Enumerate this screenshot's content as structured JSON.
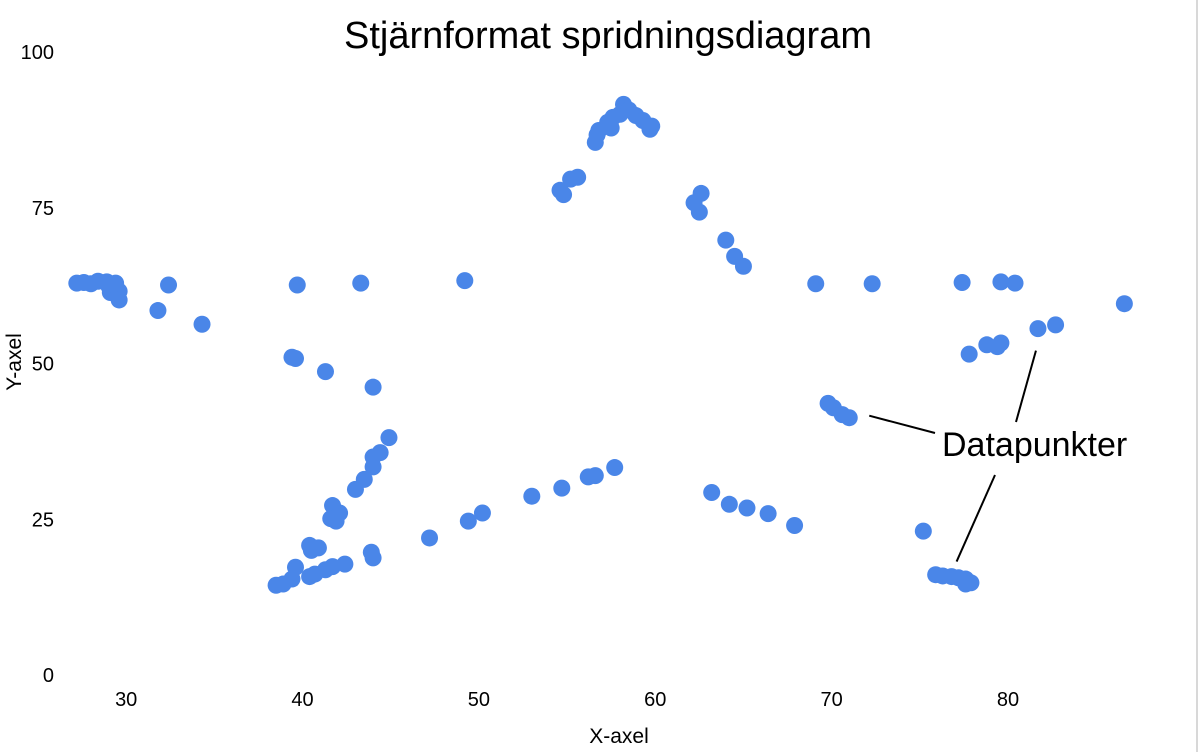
{
  "chart_data": {
    "type": "scatter",
    "title": "Stjärnformat spridningsdiagram",
    "xlabel": "X-axel",
    "ylabel": "Y-axel",
    "xlim": [
      26.7,
      87.6
    ],
    "ylim": [
      0,
      100
    ],
    "xticks": [
      "30",
      "40",
      "50",
      "60",
      "70",
      "80"
    ],
    "yticks": [
      "0",
      "25",
      "50",
      "75",
      "100"
    ],
    "grid": false,
    "legend": "none",
    "point_color": "#4a86e8",
    "annotation": {
      "text": "Datapunkter",
      "targets": [
        [
          71.0,
          41.3
        ],
        [
          81.7,
          55.6
        ],
        [
          77.2,
          15.0
        ]
      ]
    },
    "series": [
      {
        "points": [
          [
            27.2,
            62.9
          ],
          [
            27.6,
            63.0
          ],
          [
            28.0,
            62.8
          ],
          [
            28.4,
            63.2
          ],
          [
            28.9,
            63.1
          ],
          [
            29.0,
            62.5
          ],
          [
            29.1,
            61.4
          ],
          [
            29.3,
            62.6
          ],
          [
            29.6,
            61.6
          ],
          [
            29.6,
            60.2
          ],
          [
            29.4,
            62.9
          ],
          [
            31.8,
            58.5
          ],
          [
            32.4,
            62.6
          ],
          [
            34.3,
            56.3
          ],
          [
            39.4,
            51.0
          ],
          [
            39.6,
            50.8
          ],
          [
            39.7,
            62.6
          ],
          [
            41.3,
            48.7
          ],
          [
            43.3,
            62.9
          ],
          [
            44.0,
            46.2
          ],
          [
            49.2,
            63.3
          ],
          [
            54.6,
            77.8
          ],
          [
            54.8,
            77.1
          ],
          [
            55.2,
            79.6
          ],
          [
            55.6,
            79.9
          ],
          [
            56.6,
            85.5
          ],
          [
            56.7,
            86.7
          ],
          [
            56.8,
            87.4
          ],
          [
            57.3,
            88.7
          ],
          [
            57.5,
            87.8
          ],
          [
            57.6,
            89.5
          ],
          [
            58.0,
            90.0
          ],
          [
            58.2,
            91.6
          ],
          [
            58.5,
            90.7
          ],
          [
            58.9,
            89.8
          ],
          [
            59.3,
            89.0
          ],
          [
            59.7,
            87.6
          ],
          [
            59.8,
            88.1
          ],
          [
            62.2,
            75.8
          ],
          [
            62.5,
            74.3
          ],
          [
            62.6,
            77.3
          ],
          [
            64.0,
            69.8
          ],
          [
            64.5,
            67.2
          ],
          [
            65.0,
            65.6
          ],
          [
            69.1,
            62.8
          ],
          [
            72.3,
            62.8
          ],
          [
            77.4,
            63.0
          ],
          [
            79.6,
            63.1
          ],
          [
            80.4,
            62.9
          ],
          [
            86.6,
            59.6
          ],
          [
            82.7,
            56.2
          ],
          [
            81.7,
            55.6
          ],
          [
            79.6,
            53.3
          ],
          [
            79.4,
            52.7
          ],
          [
            78.8,
            53.0
          ],
          [
            77.8,
            51.5
          ],
          [
            69.8,
            43.6
          ],
          [
            70.1,
            42.9
          ],
          [
            70.6,
            41.8
          ],
          [
            71.0,
            41.3
          ],
          [
            44.9,
            38.1
          ],
          [
            44.4,
            35.7
          ],
          [
            44.0,
            35.0
          ],
          [
            44.0,
            33.4
          ],
          [
            43.5,
            31.4
          ],
          [
            43.0,
            29.8
          ],
          [
            41.7,
            27.2
          ],
          [
            41.6,
            25.1
          ],
          [
            41.9,
            24.7
          ],
          [
            42.1,
            26.0
          ],
          [
            40.4,
            20.8
          ],
          [
            40.5,
            20.0
          ],
          [
            40.9,
            20.4
          ],
          [
            43.9,
            19.7
          ],
          [
            44.0,
            18.8
          ],
          [
            42.4,
            17.8
          ],
          [
            41.7,
            17.4
          ],
          [
            41.3,
            16.9
          ],
          [
            40.7,
            16.2
          ],
          [
            40.4,
            15.8
          ],
          [
            39.6,
            17.3
          ],
          [
            39.4,
            15.4
          ],
          [
            38.9,
            14.6
          ],
          [
            38.5,
            14.4
          ],
          [
            47.2,
            22.0
          ],
          [
            49.4,
            24.7
          ],
          [
            50.2,
            26.0
          ],
          [
            53.0,
            28.7
          ],
          [
            54.7,
            30.0
          ],
          [
            56.2,
            31.8
          ],
          [
            56.6,
            32.0
          ],
          [
            57.7,
            33.3
          ],
          [
            63.2,
            29.3
          ],
          [
            64.2,
            27.4
          ],
          [
            65.2,
            26.8
          ],
          [
            66.4,
            25.9
          ],
          [
            67.9,
            24.0
          ],
          [
            75.2,
            23.1
          ],
          [
            75.9,
            16.1
          ],
          [
            76.3,
            15.9
          ],
          [
            76.8,
            15.8
          ],
          [
            77.2,
            15.6
          ],
          [
            77.6,
            15.4
          ],
          [
            77.9,
            14.8
          ],
          [
            77.6,
            14.6
          ]
        ]
      }
    ]
  }
}
